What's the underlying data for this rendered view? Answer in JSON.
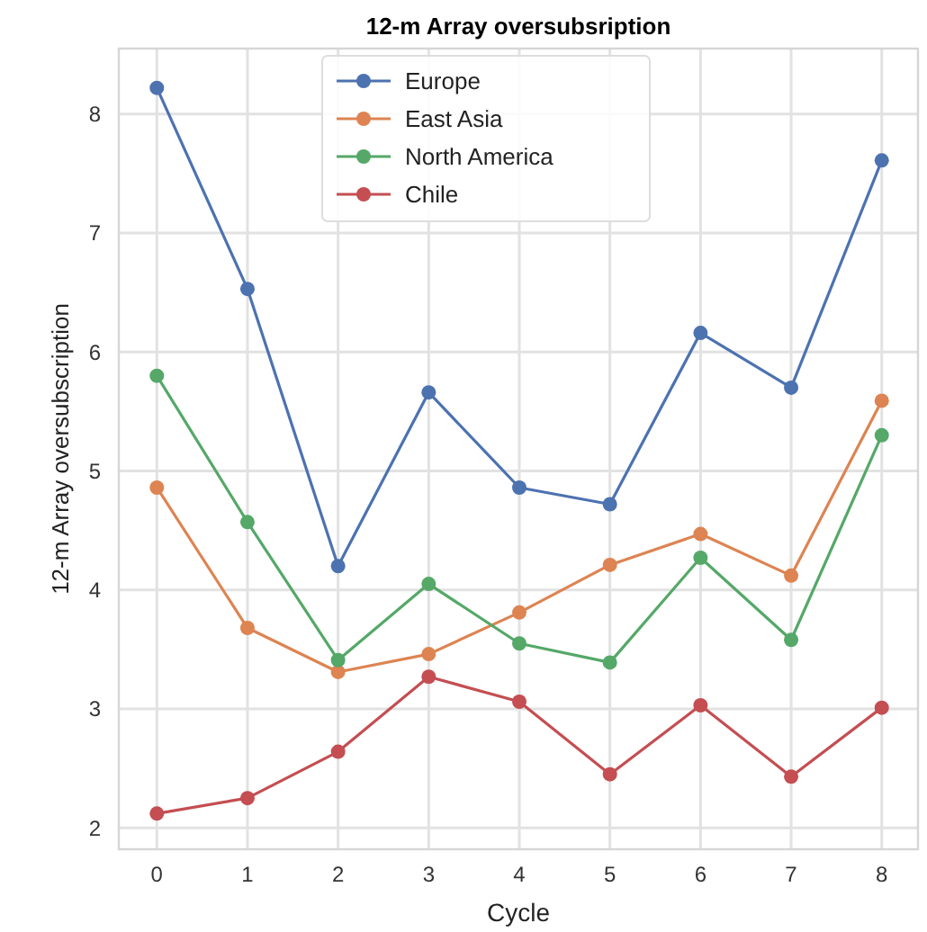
{
  "chart_data": {
    "type": "line",
    "title": "12-m Array oversubsription",
    "xlabel": "Cycle",
    "ylabel": "12-m Array oversubscription",
    "x": [
      0,
      1,
      2,
      3,
      4,
      5,
      6,
      7,
      8
    ],
    "series": [
      {
        "name": "Europe",
        "color": "#4c72b0",
        "values": [
          8.22,
          6.53,
          4.2,
          5.66,
          4.86,
          4.72,
          6.16,
          5.7,
          7.61
        ]
      },
      {
        "name": "East Asia",
        "color": "#dd8452",
        "values": [
          4.86,
          3.68,
          3.31,
          3.46,
          3.81,
          4.21,
          4.47,
          4.12,
          5.59
        ]
      },
      {
        "name": "North America",
        "color": "#55a868",
        "values": [
          5.8,
          4.57,
          3.41,
          4.05,
          3.55,
          3.39,
          4.27,
          3.58,
          5.3
        ]
      },
      {
        "name": "Chile",
        "color": "#c44e52",
        "values": [
          2.12,
          2.25,
          2.64,
          3.27,
          3.06,
          2.45,
          3.03,
          2.43,
          3.01
        ]
      }
    ],
    "xlim": [
      -0.42,
      8.4
    ],
    "ylim": [
      1.82,
      8.55
    ],
    "xticks": [
      0,
      1,
      2,
      3,
      4,
      5,
      6,
      7,
      8
    ],
    "yticks": [
      2,
      3,
      4,
      5,
      6,
      7,
      8
    ],
    "grid": true,
    "legend": "top",
    "marker": "circle",
    "line_style": "solid"
  }
}
